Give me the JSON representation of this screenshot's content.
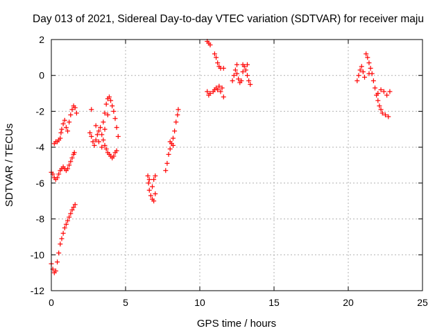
{
  "chart_data": {
    "type": "scatter",
    "title": "Day 013 of 2021, Sidereal Day-to-day VTEC variation (SDTVAR) for receiver maju",
    "xlabel": "GPS time / hours",
    "ylabel": "SDTVAR / TECUs",
    "xlim": [
      0,
      25
    ],
    "ylim": [
      -12,
      2
    ],
    "x_ticks": [
      0,
      5,
      10,
      15,
      20,
      25
    ],
    "y_ticks": [
      2,
      0,
      -2,
      -4,
      -6,
      -8,
      -10,
      -12
    ],
    "x_tick_labels": [
      "0",
      "5",
      "10",
      "15",
      "20",
      "25"
    ],
    "y_tick_labels": [
      "2",
      "0",
      "-2",
      "-4",
      "-6",
      "-8",
      "-10",
      "-12"
    ],
    "grid": true,
    "marker": "plus",
    "series_color": "#ff0000",
    "segments": [
      {
        "name": "seg-a-rising",
        "points": [
          [
            0.0,
            -10.5
          ],
          [
            0.1,
            -10.8
          ],
          [
            0.2,
            -11.0
          ],
          [
            0.3,
            -10.9
          ],
          [
            0.4,
            -10.4
          ],
          [
            0.5,
            -9.9
          ],
          [
            0.6,
            -9.4
          ],
          [
            0.7,
            -9.1
          ],
          [
            0.8,
            -8.8
          ],
          [
            0.9,
            -8.5
          ],
          [
            1.0,
            -8.3
          ],
          [
            1.1,
            -8.1
          ],
          [
            1.2,
            -7.9
          ],
          [
            1.3,
            -7.7
          ],
          [
            1.4,
            -7.5
          ],
          [
            1.5,
            -7.35
          ],
          [
            1.6,
            -7.2
          ]
        ]
      },
      {
        "name": "seg-b-mid",
        "points": [
          [
            0.0,
            -5.4
          ],
          [
            0.1,
            -5.5
          ],
          [
            0.2,
            -5.7
          ],
          [
            0.3,
            -5.8
          ],
          [
            0.4,
            -5.7
          ],
          [
            0.5,
            -5.5
          ],
          [
            0.6,
            -5.3
          ],
          [
            0.7,
            -5.2
          ],
          [
            0.8,
            -5.1
          ],
          [
            0.9,
            -5.2
          ],
          [
            1.0,
            -5.3
          ],
          [
            1.1,
            -5.2
          ],
          [
            1.2,
            -5.0
          ],
          [
            1.3,
            -4.8
          ],
          [
            1.4,
            -4.6
          ],
          [
            1.5,
            -4.4
          ],
          [
            1.55,
            -4.3
          ]
        ]
      },
      {
        "name": "seg-c-upper",
        "points": [
          [
            0.2,
            -3.8
          ],
          [
            0.3,
            -3.7
          ],
          [
            0.4,
            -3.7
          ],
          [
            0.5,
            -3.6
          ],
          [
            0.6,
            -3.5
          ],
          [
            0.65,
            -3.2
          ],
          [
            0.7,
            -3.0
          ],
          [
            0.8,
            -2.7
          ],
          [
            0.9,
            -2.5
          ],
          [
            1.0,
            -2.9
          ],
          [
            1.1,
            -3.1
          ],
          [
            1.2,
            -2.6
          ],
          [
            1.3,
            -2.2
          ],
          [
            1.4,
            -1.9
          ],
          [
            1.5,
            -1.7
          ],
          [
            1.6,
            -1.8
          ],
          [
            1.7,
            -2.1
          ]
        ]
      },
      {
        "name": "seg-d-cluster",
        "points": [
          [
            2.6,
            -3.2
          ],
          [
            2.7,
            -3.4
          ],
          [
            2.8,
            -3.7
          ],
          [
            2.9,
            -3.9
          ],
          [
            3.0,
            -3.6
          ],
          [
            3.1,
            -3.3
          ],
          [
            3.2,
            -3.1
          ],
          [
            3.3,
            -2.9
          ],
          [
            3.4,
            -3.3
          ],
          [
            3.5,
            -3.6
          ],
          [
            3.6,
            -3.9
          ],
          [
            3.7,
            -4.1
          ],
          [
            3.8,
            -4.3
          ],
          [
            3.9,
            -4.4
          ],
          [
            4.0,
            -4.5
          ],
          [
            4.1,
            -4.6
          ],
          [
            4.2,
            -4.5
          ],
          [
            4.3,
            -4.3
          ],
          [
            4.4,
            -4.2
          ],
          [
            3.0,
            -2.8
          ],
          [
            3.2,
            -3.7
          ],
          [
            3.4,
            -4.0
          ],
          [
            3.6,
            -3.0
          ],
          [
            3.8,
            -2.2
          ],
          [
            2.7,
            -1.9
          ]
        ]
      },
      {
        "name": "seg-e-loop",
        "points": [
          [
            3.5,
            -2.6
          ],
          [
            3.6,
            -2.1
          ],
          [
            3.7,
            -1.6
          ],
          [
            3.8,
            -1.3
          ],
          [
            3.9,
            -1.2
          ],
          [
            4.0,
            -1.4
          ],
          [
            4.1,
            -1.7
          ],
          [
            4.2,
            -2.0
          ],
          [
            4.3,
            -2.4
          ],
          [
            4.4,
            -2.9
          ],
          [
            4.5,
            -3.4
          ]
        ]
      },
      {
        "name": "seg-f-dip",
        "points": [
          [
            6.5,
            -5.6
          ],
          [
            6.55,
            -6.0
          ],
          [
            6.6,
            -6.4
          ],
          [
            6.7,
            -6.7
          ],
          [
            6.8,
            -6.9
          ],
          [
            6.9,
            -7.0
          ],
          [
            7.0,
            -6.6
          ],
          [
            6.8,
            -6.2
          ],
          [
            6.9,
            -5.8
          ],
          [
            7.0,
            -5.6
          ],
          [
            6.6,
            -5.8
          ]
        ]
      },
      {
        "name": "seg-g-climb",
        "points": [
          [
            7.7,
            -5.3
          ],
          [
            7.8,
            -4.9
          ],
          [
            7.9,
            -4.4
          ],
          [
            8.0,
            -4.1
          ],
          [
            8.1,
            -3.8
          ],
          [
            8.2,
            -3.5
          ],
          [
            8.3,
            -3.1
          ],
          [
            8.4,
            -2.6
          ],
          [
            8.5,
            -2.2
          ],
          [
            8.55,
            -1.9
          ],
          [
            8.0,
            -3.7
          ],
          [
            8.2,
            -3.9
          ]
        ]
      },
      {
        "name": "seg-h-top",
        "points": [
          [
            10.5,
            1.9
          ],
          [
            10.6,
            1.8
          ],
          [
            10.7,
            1.7
          ],
          [
            11.0,
            1.2
          ],
          [
            11.1,
            1.0
          ],
          [
            11.2,
            0.7
          ],
          [
            11.3,
            0.5
          ],
          [
            11.4,
            0.4
          ],
          [
            11.6,
            0.4
          ]
        ]
      },
      {
        "name": "seg-i-low",
        "points": [
          [
            10.5,
            -0.9
          ],
          [
            10.6,
            -1.1
          ],
          [
            10.7,
            -1.0
          ],
          [
            10.9,
            -0.9
          ],
          [
            11.0,
            -0.8
          ],
          [
            11.1,
            -0.7
          ],
          [
            11.2,
            -0.8
          ],
          [
            11.3,
            -0.6
          ],
          [
            11.4,
            -0.9
          ],
          [
            11.6,
            -1.2
          ],
          [
            11.5,
            -0.7
          ]
        ]
      },
      {
        "name": "seg-j-band",
        "points": [
          [
            12.2,
            -0.3
          ],
          [
            12.3,
            0.0
          ],
          [
            12.4,
            0.3
          ],
          [
            12.5,
            0.1
          ],
          [
            12.6,
            -0.2
          ],
          [
            12.7,
            -0.4
          ],
          [
            12.8,
            -0.3
          ],
          [
            12.9,
            0.2
          ],
          [
            13.0,
            0.5
          ],
          [
            13.1,
            0.3
          ],
          [
            13.2,
            0.0
          ],
          [
            13.3,
            -0.3
          ],
          [
            13.4,
            -0.5
          ],
          [
            12.5,
            0.6
          ],
          [
            12.9,
            0.6
          ],
          [
            13.2,
            0.6
          ]
        ]
      },
      {
        "name": "seg-k-late",
        "points": [
          [
            20.6,
            -0.3
          ],
          [
            20.7,
            0.0
          ],
          [
            20.8,
            0.3
          ],
          [
            20.9,
            0.5
          ],
          [
            21.0,
            0.2
          ],
          [
            21.1,
            -0.1
          ],
          [
            21.2,
            1.2
          ],
          [
            21.3,
            1.0
          ],
          [
            21.4,
            0.7
          ],
          [
            21.5,
            0.4
          ],
          [
            21.6,
            0.1
          ],
          [
            21.7,
            -0.3
          ],
          [
            21.8,
            -0.7
          ],
          [
            21.9,
            -1.1
          ],
          [
            22.0,
            -1.4
          ],
          [
            22.1,
            -1.7
          ],
          [
            22.2,
            -1.9
          ],
          [
            22.3,
            -2.1
          ],
          [
            22.5,
            -2.2
          ],
          [
            22.7,
            -2.3
          ],
          [
            22.0,
            -1.0
          ],
          [
            22.2,
            -0.8
          ],
          [
            22.4,
            -0.9
          ],
          [
            22.6,
            -1.1
          ],
          [
            22.8,
            -0.9
          ],
          [
            21.4,
            0.1
          ]
        ]
      }
    ]
  }
}
